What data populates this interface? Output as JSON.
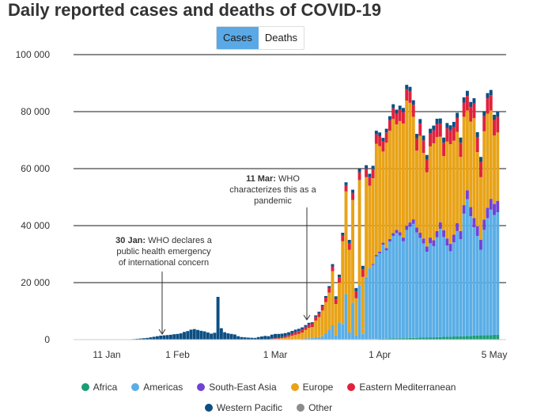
{
  "chart_data": {
    "type": "bar",
    "title": "Daily reported cases and deaths of COVID-19",
    "toggle": {
      "options": [
        "Cases",
        "Deaths"
      ],
      "active": "Cases"
    },
    "y_ticks": [
      "100 000",
      "80 000",
      "60 000",
      "40 000",
      "20 000",
      "0"
    ],
    "y_tick_values": [
      100000,
      80000,
      60000,
      40000,
      20000,
      0
    ],
    "ylim": [
      0,
      100000
    ],
    "x_ticks": [
      {
        "label": "11 Jan",
        "day": 11
      },
      {
        "label": "1 Feb",
        "day": 32
      },
      {
        "label": "1 Mar",
        "day": 61
      },
      {
        "label": "1 Apr",
        "day": 92
      },
      {
        "label": "5 May",
        "day": 126
      }
    ],
    "x_range_days": [
      0,
      130
    ],
    "series_order": [
      "Africa",
      "Americas",
      "South-East Asia",
      "Europe",
      "Eastern Mediterranean",
      "Western Pacific",
      "Other"
    ],
    "colors": {
      "Africa": "#1a9e76",
      "Americas": "#5aaee6",
      "South-East Asia": "#6f42d6",
      "Europe": "#e8a317",
      "Eastern Mediterranean": "#e0223c",
      "Western Pacific": "#0b4f84",
      "Other": "#8c8c8c"
    },
    "grid_color": "#1a1a1a",
    "annotations": [
      {
        "bold": "30 Jan:",
        "text": "WHO declares a public health emergency of international concern",
        "lines": [
          "30 Jan: WHO declares a",
          "public health emergency",
          "of international concern"
        ],
        "day": 30
      },
      {
        "bold": "11 Mar:",
        "text": "WHO characterizes this as a pandemic",
        "lines": [
          "11 Mar: WHO",
          "characterizes this as a",
          "pandemic"
        ],
        "day": 71
      }
    ],
    "legend": [
      "Africa",
      "Americas",
      "South-East Asia",
      "Europe",
      "Eastern Mediterranean",
      "Western Pacific",
      "Other"
    ],
    "daily": [
      {
        "day": 18,
        "Western Pacific": 150
      },
      {
        "day": 19,
        "Western Pacific": 200
      },
      {
        "day": 20,
        "Western Pacific": 300
      },
      {
        "day": 21,
        "Western Pacific": 400
      },
      {
        "day": 22,
        "Western Pacific": 500
      },
      {
        "day": 23,
        "Western Pacific": 600
      },
      {
        "day": 24,
        "Western Pacific": 800
      },
      {
        "day": 25,
        "Western Pacific": 1000
      },
      {
        "day": 26,
        "Western Pacific": 1200
      },
      {
        "day": 27,
        "Western Pacific": 1400
      },
      {
        "day": 28,
        "Western Pacific": 1500
      },
      {
        "day": 29,
        "Western Pacific": 1600
      },
      {
        "day": 30,
        "Western Pacific": 1700
      },
      {
        "day": 31,
        "Western Pacific": 1900
      },
      {
        "day": 32,
        "Western Pacific": 2000
      },
      {
        "day": 33,
        "Western Pacific": 2200
      },
      {
        "day": 34,
        "Western Pacific": 2700
      },
      {
        "day": 35,
        "Western Pacific": 3000
      },
      {
        "day": 36,
        "Western Pacific": 3500
      },
      {
        "day": 37,
        "Western Pacific": 3700
      },
      {
        "day": 38,
        "Western Pacific": 3400
      },
      {
        "day": 39,
        "Western Pacific": 3100
      },
      {
        "day": 40,
        "Western Pacific": 2900
      },
      {
        "day": 41,
        "Western Pacific": 2500
      },
      {
        "day": 42,
        "Western Pacific": 2100
      },
      {
        "day": 43,
        "Western Pacific": 2400
      },
      {
        "day": 44,
        "Western Pacific": 15000
      },
      {
        "day": 45,
        "Western Pacific": 4000
      },
      {
        "day": 46,
        "Western Pacific": 2600
      },
      {
        "day": 47,
        "Western Pacific": 2200
      },
      {
        "day": 48,
        "Western Pacific": 2000
      },
      {
        "day": 49,
        "Western Pacific": 1800
      },
      {
        "day": 50,
        "Western Pacific": 1200
      },
      {
        "day": 51,
        "Western Pacific": 900
      },
      {
        "day": 52,
        "Western Pacific": 800
      },
      {
        "day": 53,
        "Western Pacific": 700
      },
      {
        "day": 54,
        "Western Pacific": 650
      },
      {
        "day": 55,
        "Western Pacific": 600
      },
      {
        "day": 56,
        "Western Pacific": 900
      },
      {
        "day": 57,
        "Western Pacific": 1100
      },
      {
        "day": 58,
        "Western Pacific": 1300
      },
      {
        "day": 59,
        "Western Pacific": 1200
      },
      {
        "day": 60,
        "Europe": 200,
        "Eastern Mediterranean": 150,
        "Western Pacific": 1400
      },
      {
        "day": 61,
        "Europe": 300,
        "Eastern Mediterranean": 200,
        "Western Pacific": 1500
      },
      {
        "day": 62,
        "Europe": 400,
        "Eastern Mediterranean": 300,
        "Western Pacific": 1300
      },
      {
        "day": 63,
        "Europe": 500,
        "Eastern Mediterranean": 400,
        "Western Pacific": 1200
      },
      {
        "day": 64,
        "Americas": 100,
        "Europe": 600,
        "Eastern Mediterranean": 500,
        "Western Pacific": 1100
      },
      {
        "day": 65,
        "Americas": 100,
        "Europe": 900,
        "Eastern Mediterranean": 600,
        "Western Pacific": 1000
      },
      {
        "day": 66,
        "Americas": 150,
        "Europe": 1200,
        "Eastern Mediterranean": 700,
        "Western Pacific": 1000
      },
      {
        "day": 67,
        "Americas": 200,
        "Europe": 1500,
        "Eastern Mediterranean": 900,
        "Western Pacific": 900
      },
      {
        "day": 68,
        "Americas": 200,
        "Europe": 1800,
        "Eastern Mediterranean": 1000,
        "Western Pacific": 800
      },
      {
        "day": 69,
        "Americas": 300,
        "Europe": 2200,
        "Eastern Mediterranean": 1100,
        "Western Pacific": 700
      },
      {
        "day": 70,
        "Americas": 400,
        "Europe": 3000,
        "Eastern Mediterranean": 1100,
        "Western Pacific": 600
      },
      {
        "day": 71,
        "Americas": 500,
        "Europe": 3600,
        "Eastern Mediterranean": 1200,
        "Western Pacific": 600
      },
      {
        "day": 72,
        "Americas": 600,
        "Europe": 3800,
        "Eastern Mediterranean": 1200,
        "Western Pacific": 500
      },
      {
        "day": 73,
        "Americas": 700,
        "Europe": 6000,
        "Eastern Mediterranean": 1300,
        "Western Pacific": 500
      },
      {
        "day": 74,
        "Americas": 900,
        "Europe": 7000,
        "Eastern Mediterranean": 1400,
        "Western Pacific": 500
      },
      {
        "day": 75,
        "Americas": 1200,
        "Europe": 9000,
        "Eastern Mediterranean": 1500,
        "Western Pacific": 500
      },
      {
        "day": 76,
        "Americas": 2200,
        "Europe": 11000,
        "Eastern Mediterranean": 1500,
        "Western Pacific": 600
      },
      {
        "day": 77,
        "Americas": 3500,
        "Europe": 13000,
        "Eastern Mediterranean": 1600,
        "Western Pacific": 700
      },
      {
        "day": 78,
        "Americas": 5000,
        "Europe": 19000,
        "Eastern Mediterranean": 1700,
        "Western Pacific": 800
      },
      {
        "day": 79,
        "Americas": 1500,
        "Europe": 11000,
        "Eastern Mediterranean": 1800,
        "Western Pacific": 900
      },
      {
        "day": 80,
        "Americas": 6000,
        "Europe": 14000,
        "Eastern Mediterranean": 1900,
        "Western Pacific": 900
      },
      {
        "day": 81,
        "Americas": 5500,
        "Europe": 29000,
        "Eastern Mediterranean": 2000,
        "Western Pacific": 1000
      },
      {
        "day": 82,
        "Americas": 16000,
        "Europe": 36000,
        "Eastern Mediterranean": 2200,
        "Western Pacific": 1000
      },
      {
        "day": 83,
        "Americas": 2500,
        "Europe": 29000,
        "Eastern Mediterranean": 2400,
        "Western Pacific": 1100
      },
      {
        "day": 84,
        "Americas": 13000,
        "Europe": 36000,
        "Eastern Mediterranean": 2500,
        "Western Pacific": 1100
      },
      {
        "day": 85,
        "Americas": 1500,
        "Europe": 13000,
        "Eastern Mediterranean": 2500,
        "Western Pacific": 1100
      },
      {
        "day": 86,
        "Americas": 19000,
        "Europe": 37000,
        "Eastern Mediterranean": 2700,
        "Western Pacific": 1200
      },
      {
        "day": 87,
        "Americas": 2000,
        "Europe": 20000,
        "Eastern Mediterranean": 2700,
        "Western Pacific": 1200
      },
      {
        "day": 88,
        "Americas": 22000,
        "Europe": 35000,
        "Eastern Mediterranean": 3000,
        "Western Pacific": 1200
      },
      {
        "day": 89,
        "Americas": 25000,
        "Europe": 29000,
        "Eastern Mediterranean": 3000,
        "Western Pacific": 1200
      },
      {
        "day": 90,
        "Africa": 200,
        "Americas": 26000,
        "South-East Asia": 400,
        "Europe": 30000,
        "Eastern Mediterranean": 3200,
        "Western Pacific": 1200
      },
      {
        "day": 91,
        "Africa": 200,
        "Americas": 29000,
        "South-East Asia": 500,
        "Europe": 39000,
        "Eastern Mediterranean": 3400,
        "Western Pacific": 1200
      },
      {
        "day": 92,
        "Africa": 300,
        "Americas": 30000,
        "South-East Asia": 600,
        "Europe": 37000,
        "Eastern Mediterranean": 3500,
        "Western Pacific": 1300
      },
      {
        "day": 93,
        "Africa": 300,
        "Americas": 33000,
        "South-East Asia": 700,
        "Europe": 32000,
        "Eastern Mediterranean": 3500,
        "Western Pacific": 1300
      },
      {
        "day": 94,
        "Africa": 300,
        "Americas": 31000,
        "South-East Asia": 800,
        "Europe": 37000,
        "Eastern Mediterranean": 3600,
        "Western Pacific": 1300
      },
      {
        "day": 95,
        "Africa": 400,
        "Americas": 34000,
        "South-East Asia": 900,
        "Europe": 38000,
        "Eastern Mediterranean": 3700,
        "Western Pacific": 1400
      },
      {
        "day": 96,
        "Africa": 400,
        "Americas": 36000,
        "South-East Asia": 1000,
        "Europe": 40000,
        "Eastern Mediterranean": 3800,
        "Western Pacific": 1400
      },
      {
        "day": 97,
        "Africa": 400,
        "Americas": 37000,
        "South-East Asia": 1100,
        "Europe": 37000,
        "Eastern Mediterranean": 3800,
        "Western Pacific": 1400
      },
      {
        "day": 98,
        "Africa": 500,
        "Americas": 36000,
        "South-East Asia": 1200,
        "Europe": 39000,
        "Eastern Mediterranean": 3900,
        "Western Pacific": 1500
      },
      {
        "day": 99,
        "Africa": 500,
        "Americas": 34000,
        "South-East Asia": 1300,
        "Europe": 40000,
        "Eastern Mediterranean": 4000,
        "Western Pacific": 1500
      },
      {
        "day": 100,
        "Africa": 500,
        "Americas": 38000,
        "South-East Asia": 1400,
        "Europe": 44000,
        "Eastern Mediterranean": 4000,
        "Western Pacific": 1500
      },
      {
        "day": 101,
        "Africa": 600,
        "Americas": 39000,
        "South-East Asia": 1500,
        "Europe": 42000,
        "Eastern Mediterranean": 4100,
        "Western Pacific": 1500
      },
      {
        "day": 102,
        "Africa": 600,
        "Americas": 40000,
        "South-East Asia": 1600,
        "Europe": 36000,
        "Eastern Mediterranean": 4200,
        "Western Pacific": 1600
      },
      {
        "day": 103,
        "Africa": 600,
        "Americas": 37000,
        "South-East Asia": 1700,
        "Europe": 27000,
        "Eastern Mediterranean": 4300,
        "Western Pacific": 1600
      },
      {
        "day": 104,
        "Africa": 700,
        "Americas": 35000,
        "South-East Asia": 1800,
        "Europe": 34000,
        "Eastern Mediterranean": 4300,
        "Western Pacific": 1600
      },
      {
        "day": 105,
        "Africa": 700,
        "Americas": 33000,
        "South-East Asia": 1800,
        "Europe": 30000,
        "Eastern Mediterranean": 4400,
        "Western Pacific": 1700
      },
      {
        "day": 106,
        "Africa": 800,
        "Americas": 30000,
        "South-East Asia": 1900,
        "Europe": 26000,
        "Eastern Mediterranean": 4400,
        "Western Pacific": 1700
      },
      {
        "day": 107,
        "Africa": 800,
        "Americas": 33000,
        "South-East Asia": 2000,
        "Europe": 32000,
        "Eastern Mediterranean": 4500,
        "Western Pacific": 1700
      },
      {
        "day": 108,
        "Africa": 800,
        "Americas": 32000,
        "South-East Asia": 2100,
        "Europe": 34000,
        "Eastern Mediterranean": 4500,
        "Western Pacific": 1700
      },
      {
        "day": 109,
        "Africa": 900,
        "Americas": 35000,
        "South-East Asia": 2200,
        "Europe": 33000,
        "Eastern Mediterranean": 4600,
        "Western Pacific": 1800
      },
      {
        "day": 110,
        "Africa": 900,
        "Americas": 38000,
        "South-East Asia": 2300,
        "Europe": 30000,
        "Eastern Mediterranean": 4600,
        "Western Pacific": 1800
      },
      {
        "day": 111,
        "Africa": 1000,
        "Americas": 35000,
        "South-East Asia": 2400,
        "Europe": 26000,
        "Eastern Mediterranean": 4700,
        "Western Pacific": 1800
      },
      {
        "day": 112,
        "Africa": 1000,
        "Americas": 32000,
        "South-East Asia": 2500,
        "Europe": 34000,
        "Eastern Mediterranean": 4700,
        "Western Pacific": 1800
      },
      {
        "day": 113,
        "Africa": 1000,
        "Americas": 30000,
        "South-East Asia": 2600,
        "Europe": 35000,
        "Eastern Mediterranean": 4800,
        "Western Pacific": 1800
      },
      {
        "day": 114,
        "Africa": 1100,
        "Americas": 33000,
        "South-East Asia": 2700,
        "Europe": 33000,
        "Eastern Mediterranean": 4800,
        "Western Pacific": 1800
      },
      {
        "day": 115,
        "Africa": 1100,
        "Americas": 37000,
        "South-East Asia": 2800,
        "Europe": 32000,
        "Eastern Mediterranean": 4900,
        "Western Pacific": 1800
      },
      {
        "day": 116,
        "Africa": 1200,
        "Americas": 34000,
        "South-East Asia": 2900,
        "Europe": 26000,
        "Eastern Mediterranean": 5000,
        "Western Pacific": 1800
      },
      {
        "day": 117,
        "Africa": 1200,
        "Americas": 43000,
        "South-East Asia": 3000,
        "Europe": 31000,
        "Eastern Mediterranean": 5000,
        "Western Pacific": 1800
      },
      {
        "day": 118,
        "Africa": 1300,
        "Americas": 48000,
        "South-East Asia": 3100,
        "Europe": 28000,
        "Eastern Mediterranean": 5100,
        "Western Pacific": 1800
      },
      {
        "day": 119,
        "Africa": 1300,
        "Americas": 42000,
        "South-East Asia": 3200,
        "Europe": 30000,
        "Eastern Mediterranean": 5100,
        "Western Pacific": 1800
      },
      {
        "day": 120,
        "Africa": 1400,
        "Americas": 38000,
        "South-East Asia": 3300,
        "Europe": 35000,
        "Eastern Mediterranean": 5200,
        "Western Pacific": 1800
      },
      {
        "day": 121,
        "Africa": 1400,
        "Americas": 35000,
        "South-East Asia": 3400,
        "Europe": 26000,
        "Eastern Mediterranean": 5200,
        "Western Pacific": 1800
      },
      {
        "day": 122,
        "Africa": 1500,
        "Americas": 30000,
        "South-East Asia": 3500,
        "Europe": 22000,
        "Eastern Mediterranean": 5300,
        "Western Pacific": 1800
      },
      {
        "day": 123,
        "Africa": 1500,
        "Americas": 37000,
        "South-East Asia": 3600,
        "Europe": 31000,
        "Eastern Mediterranean": 5300,
        "Western Pacific": 1800
      },
      {
        "day": 124,
        "Africa": 1600,
        "Americas": 41000,
        "South-East Asia": 3700,
        "Europe": 33000,
        "Eastern Mediterranean": 5400,
        "Western Pacific": 1800
      },
      {
        "day": 125,
        "Africa": 1600,
        "Americas": 44000,
        "South-East Asia": 3800,
        "Europe": 31000,
        "Eastern Mediterranean": 5400,
        "Western Pacific": 1800
      },
      {
        "day": 126,
        "Africa": 1700,
        "Americas": 42000,
        "South-East Asia": 3900,
        "Europe": 24000,
        "Eastern Mediterranean": 5500,
        "Western Pacific": 1800
      },
      {
        "day": 127,
        "Africa": 1700,
        "Americas": 43000,
        "South-East Asia": 4000,
        "Europe": 24000,
        "Eastern Mediterranean": 5500,
        "Western Pacific": 1800
      }
    ]
  }
}
